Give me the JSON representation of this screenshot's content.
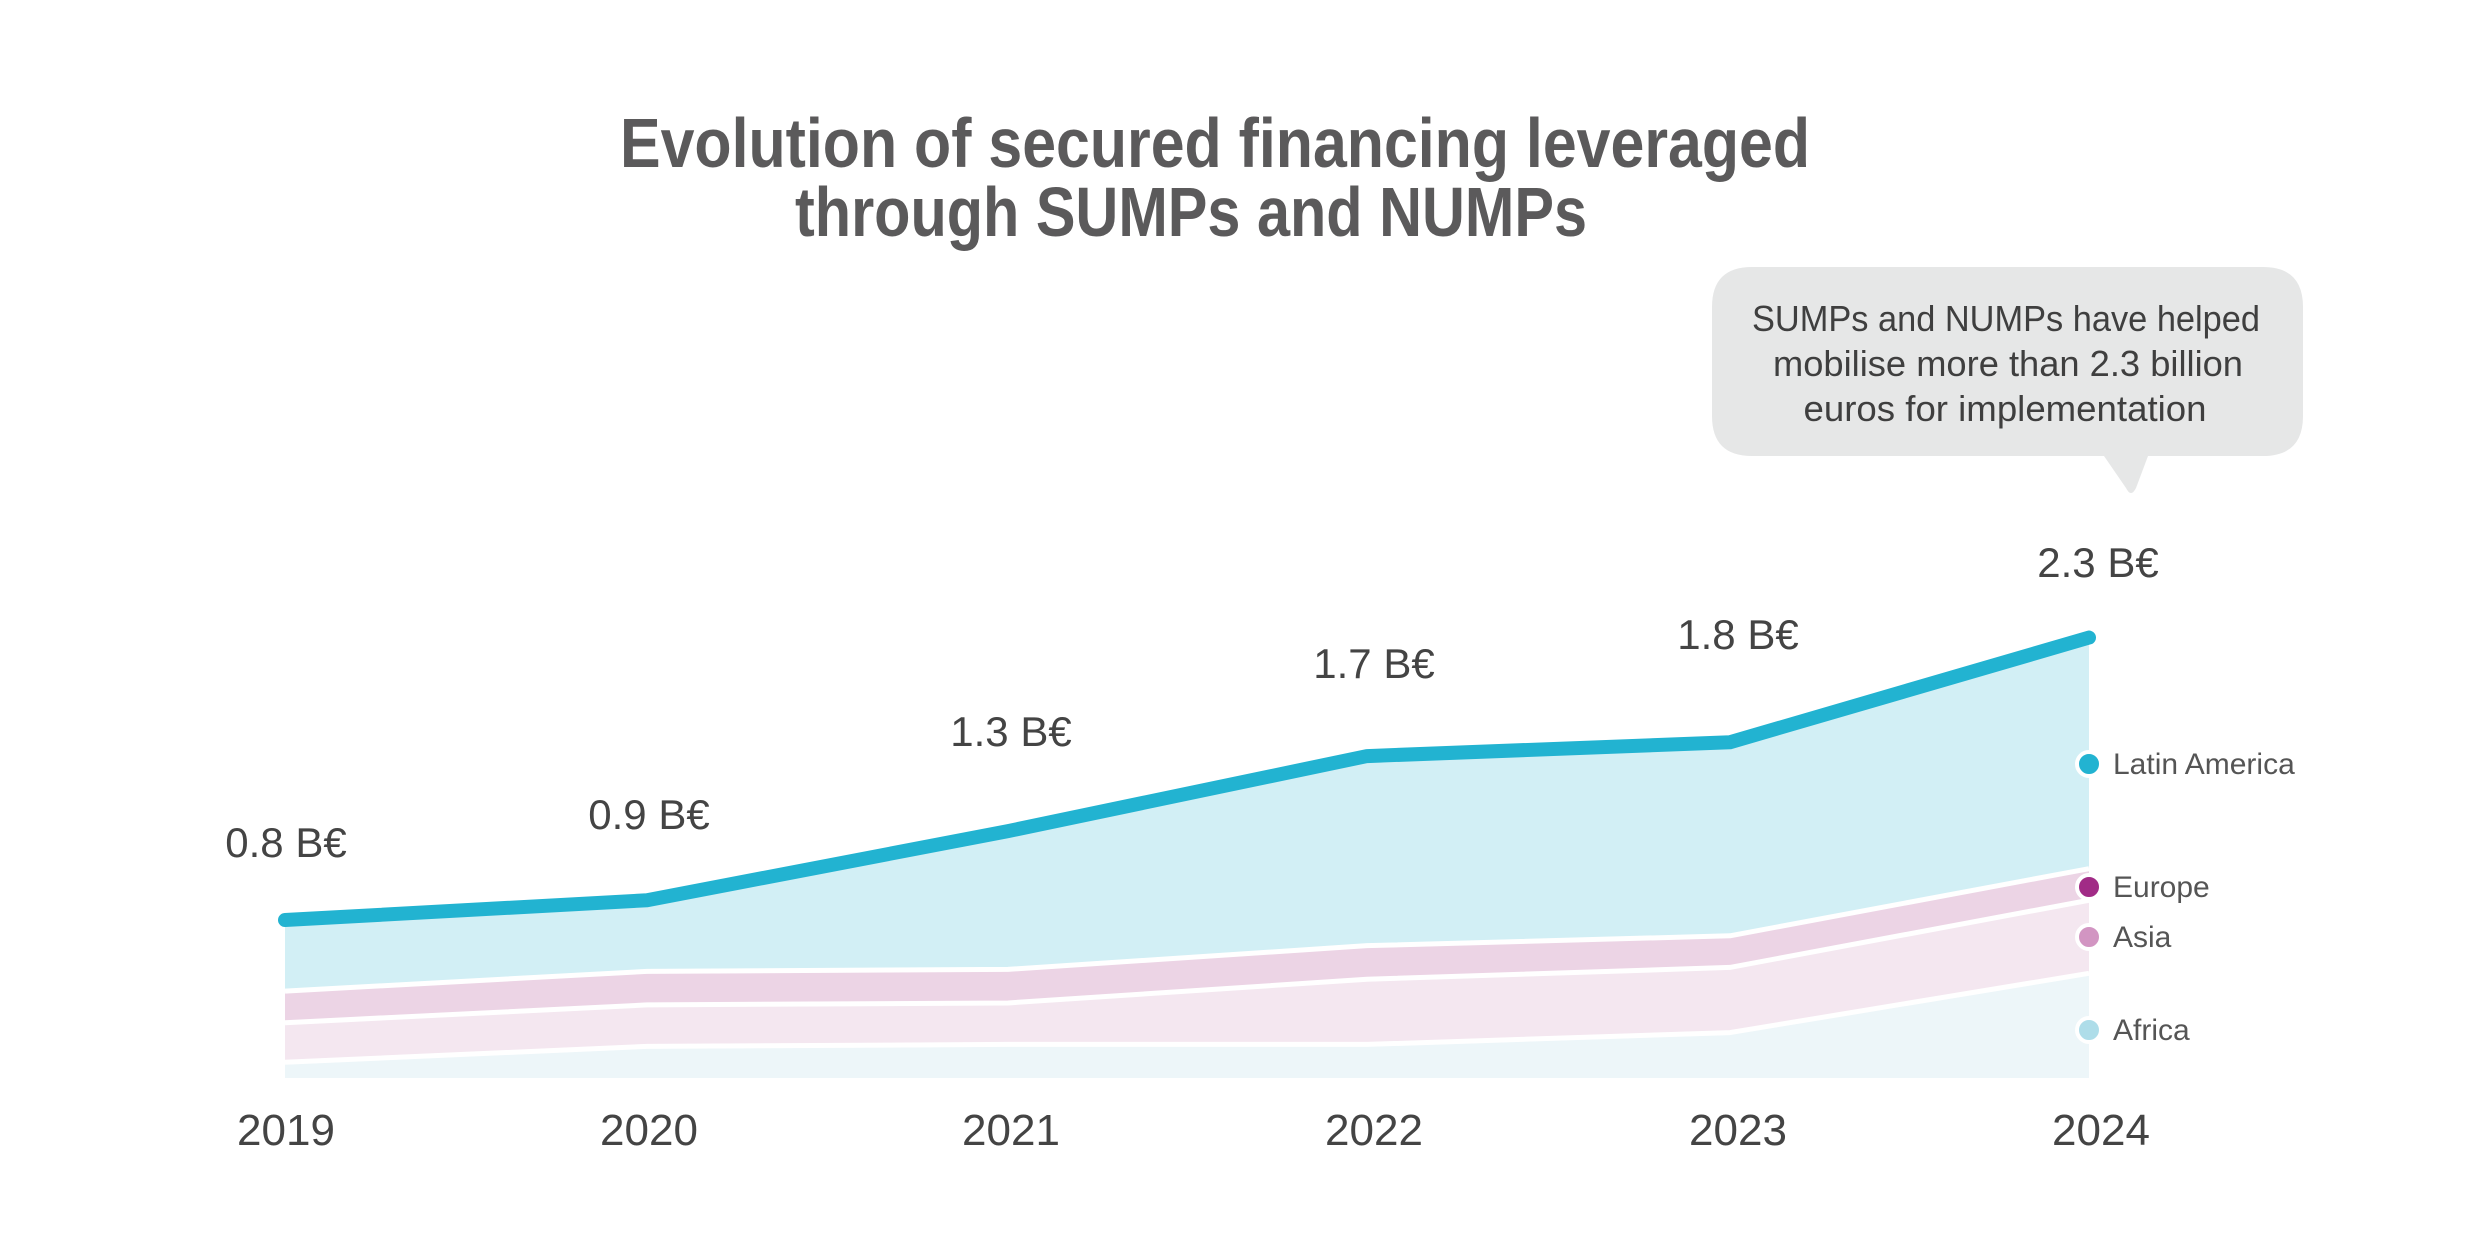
{
  "chart_data": {
    "type": "area",
    "stacked": true,
    "title": "Evolution of secured financing leveraged through SUMPs and NUMPs",
    "title_lines": [
      "Evolution of secured financing leveraged",
      "through SUMPs and NUMPs"
    ],
    "xlabel": "",
    "ylabel": "",
    "unit": "B€",
    "categories": [
      "2019",
      "2020",
      "2021",
      "2022",
      "2023",
      "2024"
    ],
    "series": [
      {
        "name": "Africa",
        "color": "#aedde9",
        "fill": "#edf6f9",
        "values": [
          0.08,
          0.16,
          0.17,
          0.17,
          0.23,
          0.53
        ]
      },
      {
        "name": "Asia",
        "color": "#d295c2",
        "fill": "#f4e7f0",
        "values": [
          0.2,
          0.21,
          0.21,
          0.33,
          0.33,
          0.37
        ]
      },
      {
        "name": "Europe",
        "color": "#a12b86",
        "fill": "#ecd4e5",
        "values": [
          0.16,
          0.17,
          0.17,
          0.17,
          0.16,
          0.16
        ]
      },
      {
        "name": "Latin America",
        "color": "#22b3d1",
        "fill": "#d2eff5",
        "values": [
          0.36,
          0.36,
          0.7,
          0.96,
          0.98,
          1.17
        ]
      }
    ],
    "totals": [
      0.8,
      0.9,
      1.3,
      1.7,
      1.8,
      2.3
    ],
    "total_labels": [
      "0.8 B€",
      "0.9 B€",
      "1.3 B€",
      "1.7 B€",
      "1.8 B€",
      "2.3 B€"
    ],
    "total_line_color": "#22b3d1",
    "ylim": [
      0,
      2.5
    ],
    "grid": false,
    "legend": {
      "placement": "right",
      "order": [
        "Latin America",
        "Europe",
        "Asia",
        "Africa"
      ]
    },
    "annotation": {
      "lines": [
        "SUMPs and NUMPs have helped",
        "mobilise more than 2.3 billion",
        "euros for implementation"
      ],
      "points_to": "2024",
      "background": "#e6e7e7"
    }
  }
}
